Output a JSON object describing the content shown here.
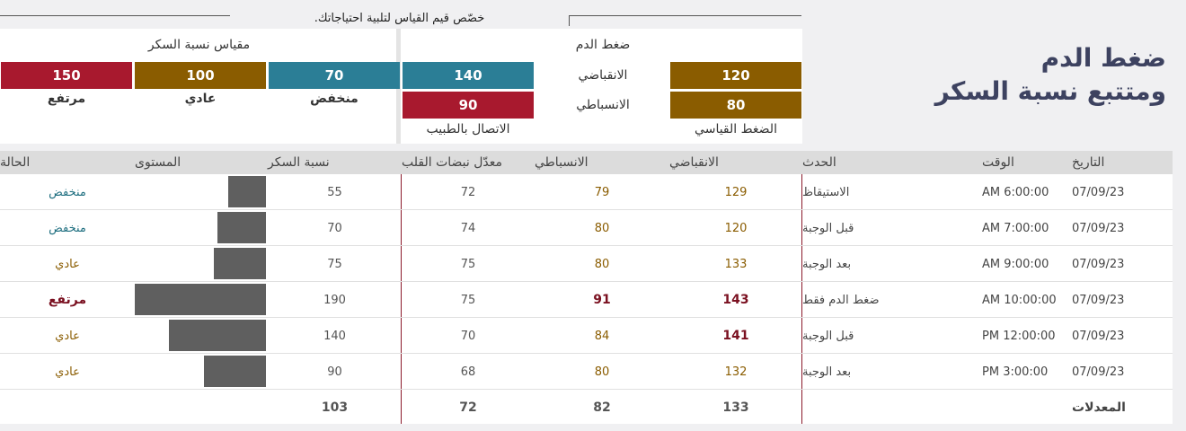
{
  "header": {
    "title_line1": "ضغط الدم",
    "title_line2": "ومتتبع نسبة السكر",
    "hint": "خصّص قيم القياس لتلبية احتياجاتك."
  },
  "bp_panel": {
    "title": "ضغط الدم",
    "systolic_label": "الانقباضي",
    "diastolic_label": "الانسباطي",
    "standard": {
      "label": "الضغط القياسي",
      "systolic": 120,
      "diastolic": 80
    },
    "doctor": {
      "label": "الاتصال بالطبيب",
      "systolic": 140,
      "diastolic": 90
    }
  },
  "sugar_panel": {
    "title": "مقياس نسبة السكر",
    "levels": [
      {
        "label": "منخفض",
        "value": 70
      },
      {
        "label": "عادي",
        "value": 100
      },
      {
        "label": "مرتفع",
        "value": 150
      }
    ]
  },
  "table": {
    "headers": [
      "التاريخ",
      "الوقت",
      "الحدث",
      "الانقباضي",
      "الانسباطي",
      "معدّل نبضات القلب",
      "نسبة السكر",
      "المستوى",
      "الحالة"
    ],
    "rows": [
      {
        "date": "07/09/23",
        "time": "AM 6:00:00",
        "event": "الاستيقاظ",
        "systolic": 129,
        "diastolic": 79,
        "heart": 72,
        "sugar": 55,
        "status": "منخفض"
      },
      {
        "date": "07/09/23",
        "time": "AM 7:00:00",
        "event": "قبل الوجبة",
        "systolic": 120,
        "diastolic": 80,
        "heart": 74,
        "sugar": 70,
        "status": "منخفض"
      },
      {
        "date": "07/09/23",
        "time": "AM 9:00:00",
        "event": "بعد الوجبة",
        "systolic": 133,
        "diastolic": 80,
        "heart": 75,
        "sugar": 75,
        "status": "عادي"
      },
      {
        "date": "07/09/23",
        "time": "AM 10:00:00",
        "event": "ضغط الدم فقط",
        "systolic": 143,
        "diastolic": 91,
        "heart": 75,
        "sugar": 190,
        "status": "مرتفع"
      },
      {
        "date": "07/09/23",
        "time": "PM 12:00:00",
        "event": "قبل الوجبة",
        "systolic": 141,
        "diastolic": 84,
        "heart": 70,
        "sugar": 140,
        "status": "عادي"
      },
      {
        "date": "07/09/23",
        "time": "PM 3:00:00",
        "event": "بعد الوجبة",
        "systolic": 132,
        "diastolic": 80,
        "heart": 68,
        "sugar": 90,
        "status": "عادي"
      }
    ],
    "averages": {
      "label": "المعدلات",
      "systolic": 133,
      "diastolic": 82,
      "heart": 72,
      "sugar": 103
    }
  }
}
